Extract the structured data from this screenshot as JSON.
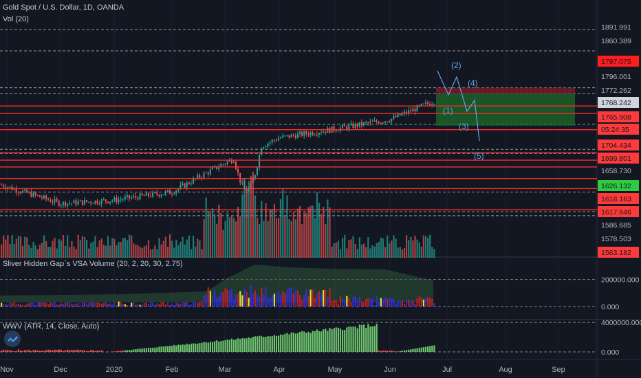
{
  "header": {
    "symbol_title": "Gold Spot / U.S. Dollar, 1D, OANDA",
    "volume_indicator": "Vol (20)",
    "vsa_indicator": "Sliver Hidden Gap`s VSA Volume (20, 2, 20, 30, 2.75)",
    "wwv_indicator": "WWV (ATR, 14, Close, Auto)"
  },
  "icons": {
    "logo": "tradingview-logo-icon"
  },
  "colors": {
    "background": "#131722",
    "up": "#26a69a",
    "down": "#ef5350",
    "resistance_line": "#ff2a2a",
    "target_box": "#1c6b2a",
    "stop_box": "#7a1e2a",
    "wave_label": "#5fa8e6",
    "axis_text": "#b2b5be",
    "current_price_tag": "#d1d4dc",
    "countdown_tag": "#ef5350",
    "wwv_bar": "#6ec56e"
  },
  "chart_data": [
    {
      "type": "line",
      "title": "Gold Spot / U.S. Dollar, 1D, OANDA",
      "xlabel": "",
      "ylabel": "",
      "x_ticks": [
        "Nov",
        "Dec",
        "2020",
        "Feb",
        "Mar",
        "Apr",
        "May",
        "Jun",
        "Jul",
        "Aug",
        "Sep"
      ],
      "y_axis_labels": [
        "1891.991",
        "1860.389",
        "1797.075",
        "1796.001",
        "1772.262",
        "1768.242",
        "1765.908",
        "05:24:35",
        "1704.434",
        "1699.801",
        "1658.730",
        "1626.132",
        "1618.163",
        "1617.646",
        "1586.685",
        "1578.503",
        "1563.182"
      ],
      "ylim": [
        1555,
        1905
      ],
      "price_path": {
        "x": [
          "Nov",
          "Dec",
          "2020",
          "Feb",
          "Mar",
          "Apr",
          "May",
          "Jun",
          "Jul"
        ],
        "y": [
          1660,
          1635,
          1640,
          1652,
          1695,
          1732,
          1745,
          1759,
          1790
        ]
      },
      "horizontal_levels_solid": [
        1779,
        1768,
        1744,
        1710,
        1699,
        1689,
        1672,
        1657,
        1626
      ],
      "horizontal_levels_dashed": [
        1891.991,
        1860.389,
        1806,
        1797,
        1752,
        1715,
        1709,
        1652,
        1623,
        1617
      ],
      "projection_waves": [
        "(1)",
        "(2)",
        "(3)",
        "(4)",
        "(5)"
      ],
      "grid": true
    },
    {
      "type": "bar",
      "title": "Vol (20)",
      "xlabel": "",
      "ylabel": "",
      "grid": false
    },
    {
      "type": "bar",
      "title": "Sliver Hidden Gap`s VSA Volume (20, 2, 20, 30, 2.75)",
      "y_axis_labels": [
        "200000.000",
        "0.000"
      ],
      "ylim": [
        0,
        320000
      ],
      "grid": true
    },
    {
      "type": "bar",
      "title": "WWV (ATR, 14, Close, Auto)",
      "y_axis_labels": [
        "4000000.000",
        "0.000"
      ],
      "ylim": [
        0,
        4200000
      ],
      "grid": true
    }
  ]
}
